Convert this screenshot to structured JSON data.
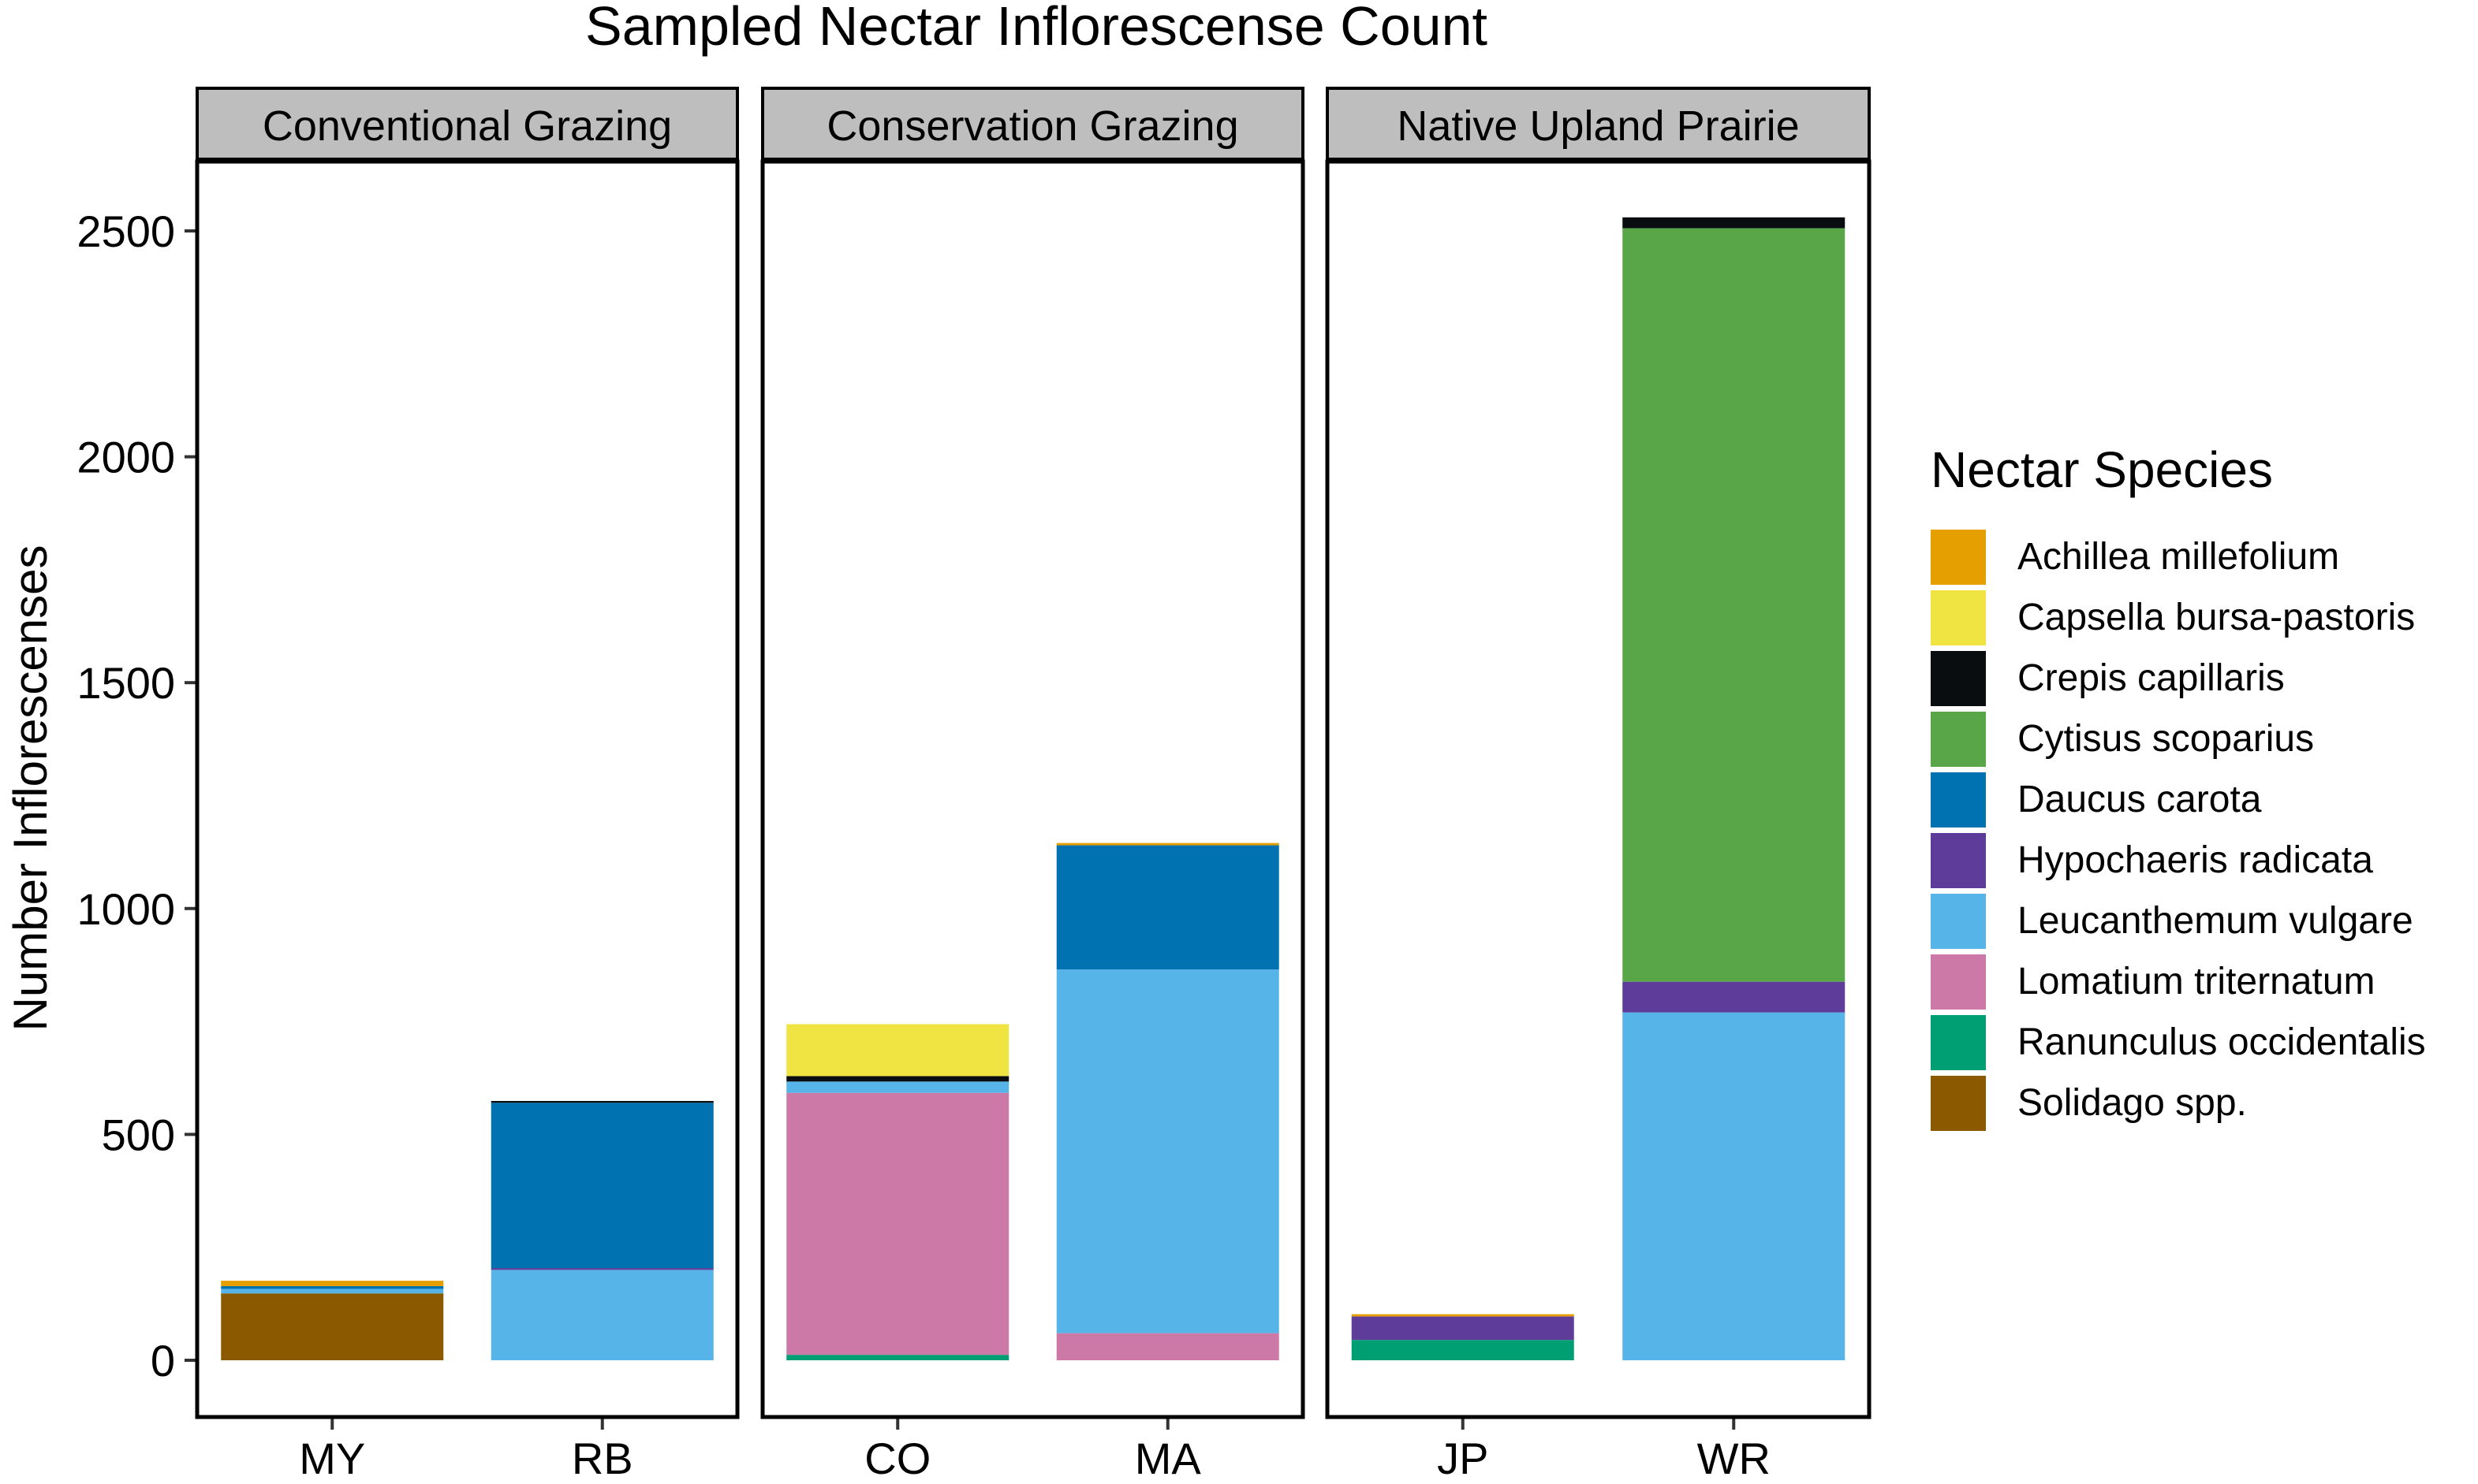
{
  "chart_data": {
    "type": "bar",
    "stacked": true,
    "title": "Sampled Nectar Inflorescense Count",
    "xlabel": "",
    "ylabel": "Number Inflorescenses",
    "ylim": [
      0,
      2650
    ],
    "yticks": [
      0,
      500,
      1000,
      1500,
      2000,
      2500
    ],
    "grid": false,
    "legend": {
      "title": "Nectar Species",
      "placement": "right",
      "entries": [
        {
          "name": "Achillea millefolium",
          "color": "#E69F00"
        },
        {
          "name": "Capsella bursa-pastoris",
          "color": "#F0E442"
        },
        {
          "name": "Crepis capillaris",
          "color": "#0A0D10"
        },
        {
          "name": "Cytisus scoparius",
          "color": "#58A648"
        },
        {
          "name": "Daucus carota",
          "color": "#0072B2"
        },
        {
          "name": "Hypochaeris radicata",
          "color": "#5E3C99"
        },
        {
          "name": "Leucanthemum vulgare",
          "color": "#56B4E9"
        },
        {
          "name": "Lomatium triternatum",
          "color": "#CC79A7"
        },
        {
          "name": "Ranunculus occidentalis",
          "color": "#009E73"
        },
        {
          "name": "Solidago spp.",
          "color": "#8B5A00"
        }
      ]
    },
    "panels": [
      {
        "name": "Conventional Grazing",
        "bars": [
          {
            "category": "MY",
            "segments": [
              {
                "species": "Solidago spp.",
                "value": 148
              },
              {
                "species": "Leucanthemum vulgare",
                "value": 10
              },
              {
                "species": "Daucus carota",
                "value": 6
              },
              {
                "species": "Achillea millefolium",
                "value": 12
              }
            ]
          },
          {
            "category": "RB",
            "segments": [
              {
                "species": "Leucanthemum vulgare",
                "value": 200
              },
              {
                "species": "Hypochaeris radicata",
                "value": 4
              },
              {
                "species": "Daucus carota",
                "value": 366
              },
              {
                "species": "Crepis capillaris",
                "value": 4
              }
            ]
          }
        ]
      },
      {
        "name": "Conservation Grazing",
        "bars": [
          {
            "category": "CO",
            "segments": [
              {
                "species": "Ranunculus occidentalis",
                "value": 12
              },
              {
                "species": "Lomatium triternatum",
                "value": 580
              },
              {
                "species": "Leucanthemum vulgare",
                "value": 25
              },
              {
                "species": "Crepis capillaris",
                "value": 12
              },
              {
                "species": "Capsella bursa-pastoris",
                "value": 115
              }
            ]
          },
          {
            "category": "MA",
            "segments": [
              {
                "species": "Lomatium triternatum",
                "value": 60
              },
              {
                "species": "Leucanthemum vulgare",
                "value": 805
              },
              {
                "species": "Daucus carota",
                "value": 275
              },
              {
                "species": "Achillea millefolium",
                "value": 5
              }
            ]
          }
        ]
      },
      {
        "name": "Native Upland Prairie",
        "bars": [
          {
            "category": "JP",
            "segments": [
              {
                "species": "Ranunculus occidentalis",
                "value": 45
              },
              {
                "species": "Hypochaeris radicata",
                "value": 52
              },
              {
                "species": "Achillea millefolium",
                "value": 5
              }
            ]
          },
          {
            "category": "WR",
            "segments": [
              {
                "species": "Leucanthemum vulgare",
                "value": 770
              },
              {
                "species": "Hypochaeris radicata",
                "value": 68
              },
              {
                "species": "Cytisus scoparius",
                "value": 1668
              },
              {
                "species": "Crepis capillaris",
                "value": 24
              }
            ]
          }
        ]
      }
    ]
  }
}
